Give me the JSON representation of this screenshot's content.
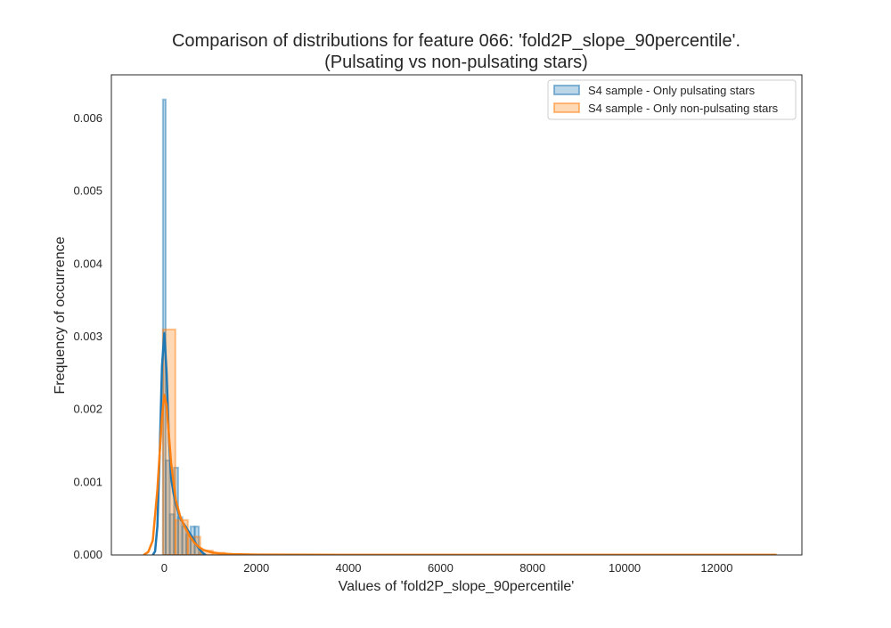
{
  "chart_data": {
    "type": "histogram",
    "title_line1": "Comparison of distributions for feature 066: 'fold2P_slope_90percentile'.",
    "title_line2": "(Pulsating vs non-pulsating stars)",
    "xlabel": "Values of 'fold2P_slope_90percentile'",
    "ylabel": "Frequency of occurrence",
    "xlim": [
      -1150,
      13850
    ],
    "ylim": [
      0,
      0.0066
    ],
    "xticks": [
      0,
      2000,
      4000,
      6000,
      8000,
      10000,
      12000
    ],
    "xtick_labels": [
      "0",
      "2000",
      "4000",
      "6000",
      "8000",
      "10000",
      "12000"
    ],
    "yticks": [
      0,
      0.001,
      0.002,
      0.003,
      0.004,
      0.005,
      0.006
    ],
    "ytick_labels": [
      "0.000",
      "0.001",
      "0.002",
      "0.003",
      "0.004",
      "0.005",
      "0.006"
    ],
    "grid": false,
    "legend_position": "top-right",
    "series": [
      {
        "name": "S4 sample - Only pulsating stars",
        "color": "#1f77b4",
        "hist_bin_edges": [
          -30,
          30,
          120,
          210,
          300,
          390,
          480,
          570,
          660,
          750,
          840
        ],
        "hist_density": [
          0.00626,
          0.0013,
          0.00056,
          0.0012,
          0.00052,
          0.00039,
          0.00028,
          0.00039,
          0.00039,
          2e-05
        ],
        "kde": {
          "x": [
            -250,
            -200,
            -150,
            -100,
            -50,
            0,
            50,
            100,
            150,
            200,
            250,
            300,
            350,
            400,
            450,
            500,
            550,
            600,
            650,
            700,
            750,
            800,
            850,
            900
          ],
          "y": [
            0.0,
            5e-05,
            0.0004,
            0.0014,
            0.0026,
            0.00305,
            0.0025,
            0.0016,
            0.00105,
            0.00085,
            0.0007,
            0.0006,
            0.0005,
            0.00045,
            0.0004,
            0.00035,
            0.0003,
            0.00025,
            0.0002,
            0.00014,
            9e-05,
            5e-05,
            2e-05,
            0.0
          ]
        }
      },
      {
        "name": "S4 sample - Only non-pulsating stars",
        "color": "#ff7f0e",
        "hist_bin_edges": [
          -30,
          240,
          510,
          780,
          1050,
          1320
        ],
        "hist_density": [
          0.0031,
          0.00048,
          0.00025,
          6e-05,
          3e-05
        ],
        "kde": {
          "x": [
            -450,
            -350,
            -250,
            -150,
            -50,
            0,
            50,
            100,
            150,
            250,
            350,
            450,
            550,
            650,
            750,
            850,
            1000,
            1200,
            1500,
            2000,
            3000,
            4000,
            6000,
            8000,
            10000,
            12000,
            13300
          ],
          "y": [
            0.0,
            4e-05,
            0.0002,
            0.0009,
            0.0019,
            0.0022,
            0.00205,
            0.00165,
            0.00125,
            0.00075,
            0.00052,
            0.00038,
            0.00026,
            0.00017,
            0.00011,
            7e-05,
            4e-05,
            2e-05,
            1e-05,
            5e-06,
            3e-06,
            2e-06,
            2e-06,
            2e-06,
            2e-06,
            2e-06,
            2e-06
          ]
        }
      }
    ]
  }
}
